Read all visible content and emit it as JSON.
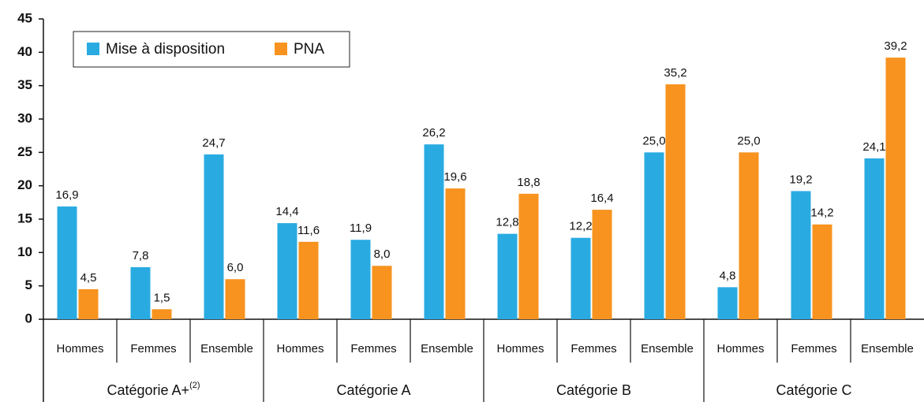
{
  "chart_data": {
    "type": "bar",
    "categories": [
      "Hommes",
      "Femmes",
      "Ensemble",
      "Hommes",
      "Femmes",
      "Ensemble",
      "Hommes",
      "Femmes",
      "Ensemble",
      "Hommes",
      "Femmes",
      "Ensemble"
    ],
    "groups": [
      {
        "name": "Catégorie A+",
        "sup": "(2)"
      },
      {
        "name": "Catégorie A"
      },
      {
        "name": "Catégorie B"
      },
      {
        "name": "Catégorie C"
      }
    ],
    "series": [
      {
        "name": "Mise à disposition",
        "color": "#29abe2",
        "values": [
          16.9,
          7.8,
          24.7,
          14.4,
          11.9,
          26.2,
          12.8,
          12.2,
          25.0,
          4.8,
          19.2,
          24.1
        ],
        "value_labels": [
          "16,9",
          "7,8",
          "24,7",
          "14,4",
          "11,9",
          "26,2",
          "12,8",
          "12,2",
          "25,0",
          "4,8",
          "19,2",
          "24,1"
        ]
      },
      {
        "name": "PNA",
        "color": "#f7931e",
        "values": [
          4.5,
          1.5,
          6.0,
          11.6,
          8.0,
          19.6,
          18.8,
          16.4,
          35.2,
          25.0,
          14.2,
          39.2
        ],
        "value_labels": [
          "4,5",
          "1,5",
          "6,0",
          "11,6",
          "8,0",
          "19,6",
          "18,8",
          "16,4",
          "35,2",
          "25,0",
          "14,2",
          "39,2"
        ]
      }
    ],
    "ylim": [
      0,
      45
    ],
    "yticks": [
      0,
      5,
      10,
      15,
      20,
      25,
      30,
      35,
      40,
      45
    ],
    "legend": "upper-left"
  }
}
